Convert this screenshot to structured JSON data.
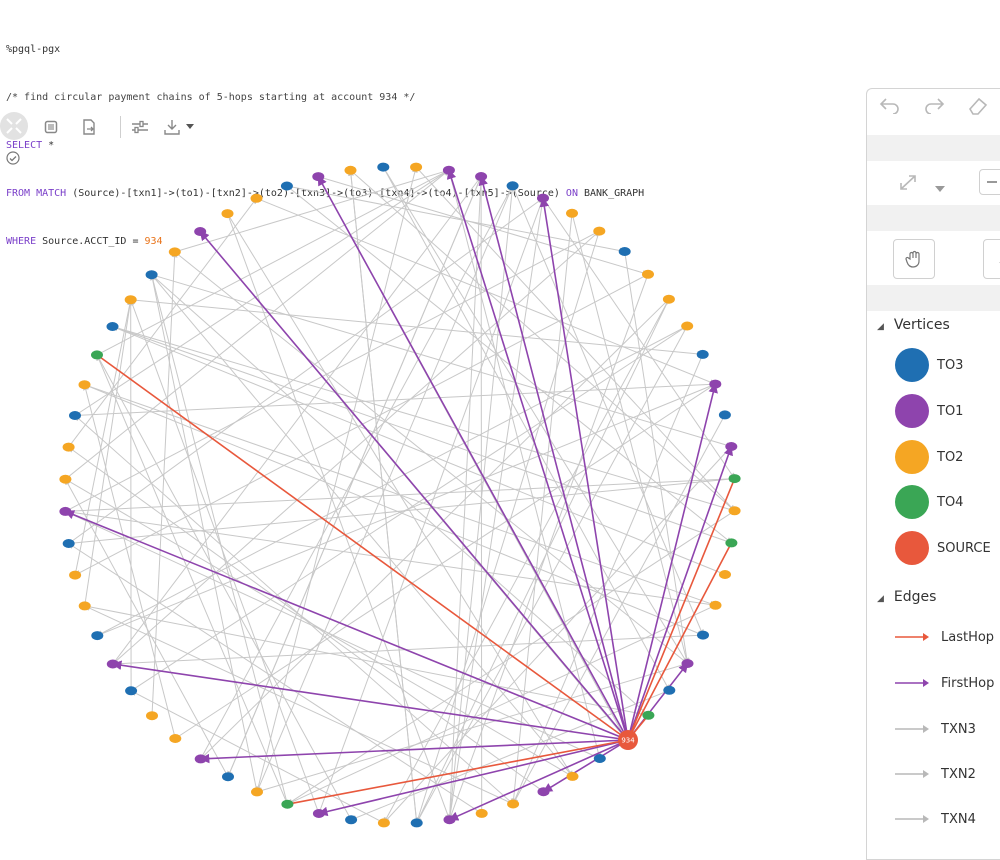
{
  "query": {
    "line1": "%pgql-pgx",
    "line2": "/* find circular payment chains of 5-hops starting at account 934 */",
    "line3_kw": "SELECT",
    "line3_rest": " *",
    "line4_kw1": "FROM MATCH",
    "line4_a": " (Source)-[txn1]->(to1)-[txn2]->(to2)-[txn3]->(to3)-[txn4]->(to4)-[txn5]->(Source) ",
    "line4_kw2": "ON",
    "line4_b": " BANK_GRAPH",
    "line5_kw": "WHERE",
    "line5_a": " Source.ACCT_ID = ",
    "line5_num": "934"
  },
  "toolbar": {
    "icons": [
      "focus-icon",
      "stop-icon",
      "export-icon",
      "settings-sliders-icon",
      "download-icon",
      "dropdown-caret-icon",
      "check-circle-icon"
    ]
  },
  "graph": {
    "source_label": "934",
    "edge_colors": {
      "LastHop": "#e8583c",
      "FirstHop": "#8e44ad",
      "TXN": "#c8c8c8"
    },
    "node_colors": {
      "TO3": "#1f6fb2",
      "TO1": "#8e44ad",
      "TO2": "#f5a623",
      "TO4": "#3aa655",
      "SOURCE": "#e8583c"
    },
    "ring": [
      "TO3",
      "TO2",
      "TO1",
      "TO1",
      "TO3",
      "TO1",
      "TO2",
      "TO2",
      "TO3",
      "TO2",
      "TO2",
      "TO2",
      "TO3",
      "TO1",
      "TO3",
      "TO1",
      "TO4",
      "TO2",
      "TO4",
      "TO2",
      "TO2",
      "TO3",
      "TO1",
      "TO3",
      "TO4",
      "TO1",
      "TO3",
      "TO2",
      "TO1",
      "TO2",
      "TO2",
      "TO1",
      "TO3",
      "TO2",
      "TO3",
      "TO1",
      "TO4",
      "TO2",
      "TO3",
      "TO1",
      "TO2",
      "TO2",
      "TO3",
      "TO1",
      "TO3",
      "TO2",
      "TO2",
      "TO3",
      "TO1",
      "TO2",
      "TO2",
      "TO3",
      "TO2",
      "TO4",
      "TO3",
      "TO2",
      "TO3",
      "TO2",
      "TO1",
      "TO2",
      "TO2",
      "TO3",
      "TO1",
      "TO2"
    ]
  },
  "panel": {
    "vertices_title": "Vertices",
    "edges_title": "Edges",
    "vertices": [
      {
        "label": "TO3",
        "color": "#1f6fb2"
      },
      {
        "label": "TO1",
        "color": "#8e44ad"
      },
      {
        "label": "TO2",
        "color": "#f5a623"
      },
      {
        "label": "TO4",
        "color": "#3aa655"
      },
      {
        "label": "SOURCE",
        "color": "#e8583c"
      }
    ],
    "edges": [
      {
        "label": "LastHop",
        "color": "#e8583c"
      },
      {
        "label": "FirstHop",
        "color": "#8e44ad"
      },
      {
        "label": "TXN3",
        "color": "#b8b8b8"
      },
      {
        "label": "TXN2",
        "color": "#b8b8b8"
      },
      {
        "label": "TXN4",
        "color": "#b8b8b8"
      }
    ]
  }
}
